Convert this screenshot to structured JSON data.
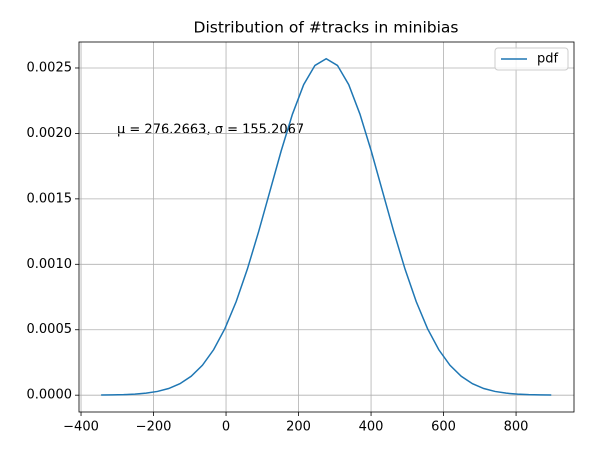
{
  "chart_data": {
    "type": "line",
    "title": "Distribution of #tracks in minibias",
    "annotation": "μ = 276.2663,  σ = 155.2067",
    "x": [
      -344.56,
      -313.52,
      -282.48,
      -251.44,
      -220.4,
      -189.35,
      -158.31,
      -127.27,
      -96.23,
      -65.19,
      -34.15,
      -3.11,
      27.94,
      58.98,
      90.02,
      121.06,
      152.1,
      183.14,
      214.18,
      245.23,
      276.27,
      307.31,
      338.35,
      369.39,
      400.43,
      431.47,
      462.51,
      493.56,
      524.6,
      555.64,
      586.68,
      617.72,
      648.76,
      679.8,
      710.85,
      741.89,
      772.93,
      803.97,
      835.01,
      866.05,
      897.09
    ],
    "series": [
      {
        "name": "pdf",
        "color": "#1f77b4",
        "values": [
          9e-07,
          1.9e-06,
          3.9e-06,
          7.9e-06,
          1.54e-05,
          2.86e-05,
          5.1e-05,
          8.75e-05,
          0.0001443,
          0.0002286,
          0.0003479,
          0.0005087,
          0.0007147,
          0.0009647,
          0.0012511,
          0.001559,
          0.0018665,
          0.002147,
          0.0023728,
          0.0025195,
          0.0025704,
          0.0025195,
          0.0023728,
          0.002147,
          0.0018665,
          0.001559,
          0.0012511,
          0.0009647,
          0.0007147,
          0.0005087,
          0.0003479,
          0.0002286,
          0.0001443,
          8.75e-05,
          5.1e-05,
          2.86e-05,
          1.54e-05,
          7.9e-06,
          3.9e-06,
          1.9e-06,
          9e-07
        ]
      }
    ],
    "xlim": [
      -405.6,
      959.8
    ],
    "xticks": [
      {
        "value": -400,
        "label": "−400"
      },
      {
        "value": -200,
        "label": "−200"
      },
      0,
      200,
      400,
      600,
      800
    ],
    "ylim": [
      -0.0001285,
      0.0026985
    ],
    "yticks": [
      {
        "value": 0,
        "label": "0.0000"
      },
      {
        "value": 0.0005,
        "label": "0.0005"
      },
      {
        "value": 0.001,
        "label": "0.0010"
      },
      {
        "value": 0.0015,
        "label": "0.0015"
      },
      {
        "value": 0.002,
        "label": "0.0020"
      },
      {
        "value": 0.0025,
        "label": "0.0025"
      }
    ],
    "grid": true,
    "legend": "upper right"
  }
}
